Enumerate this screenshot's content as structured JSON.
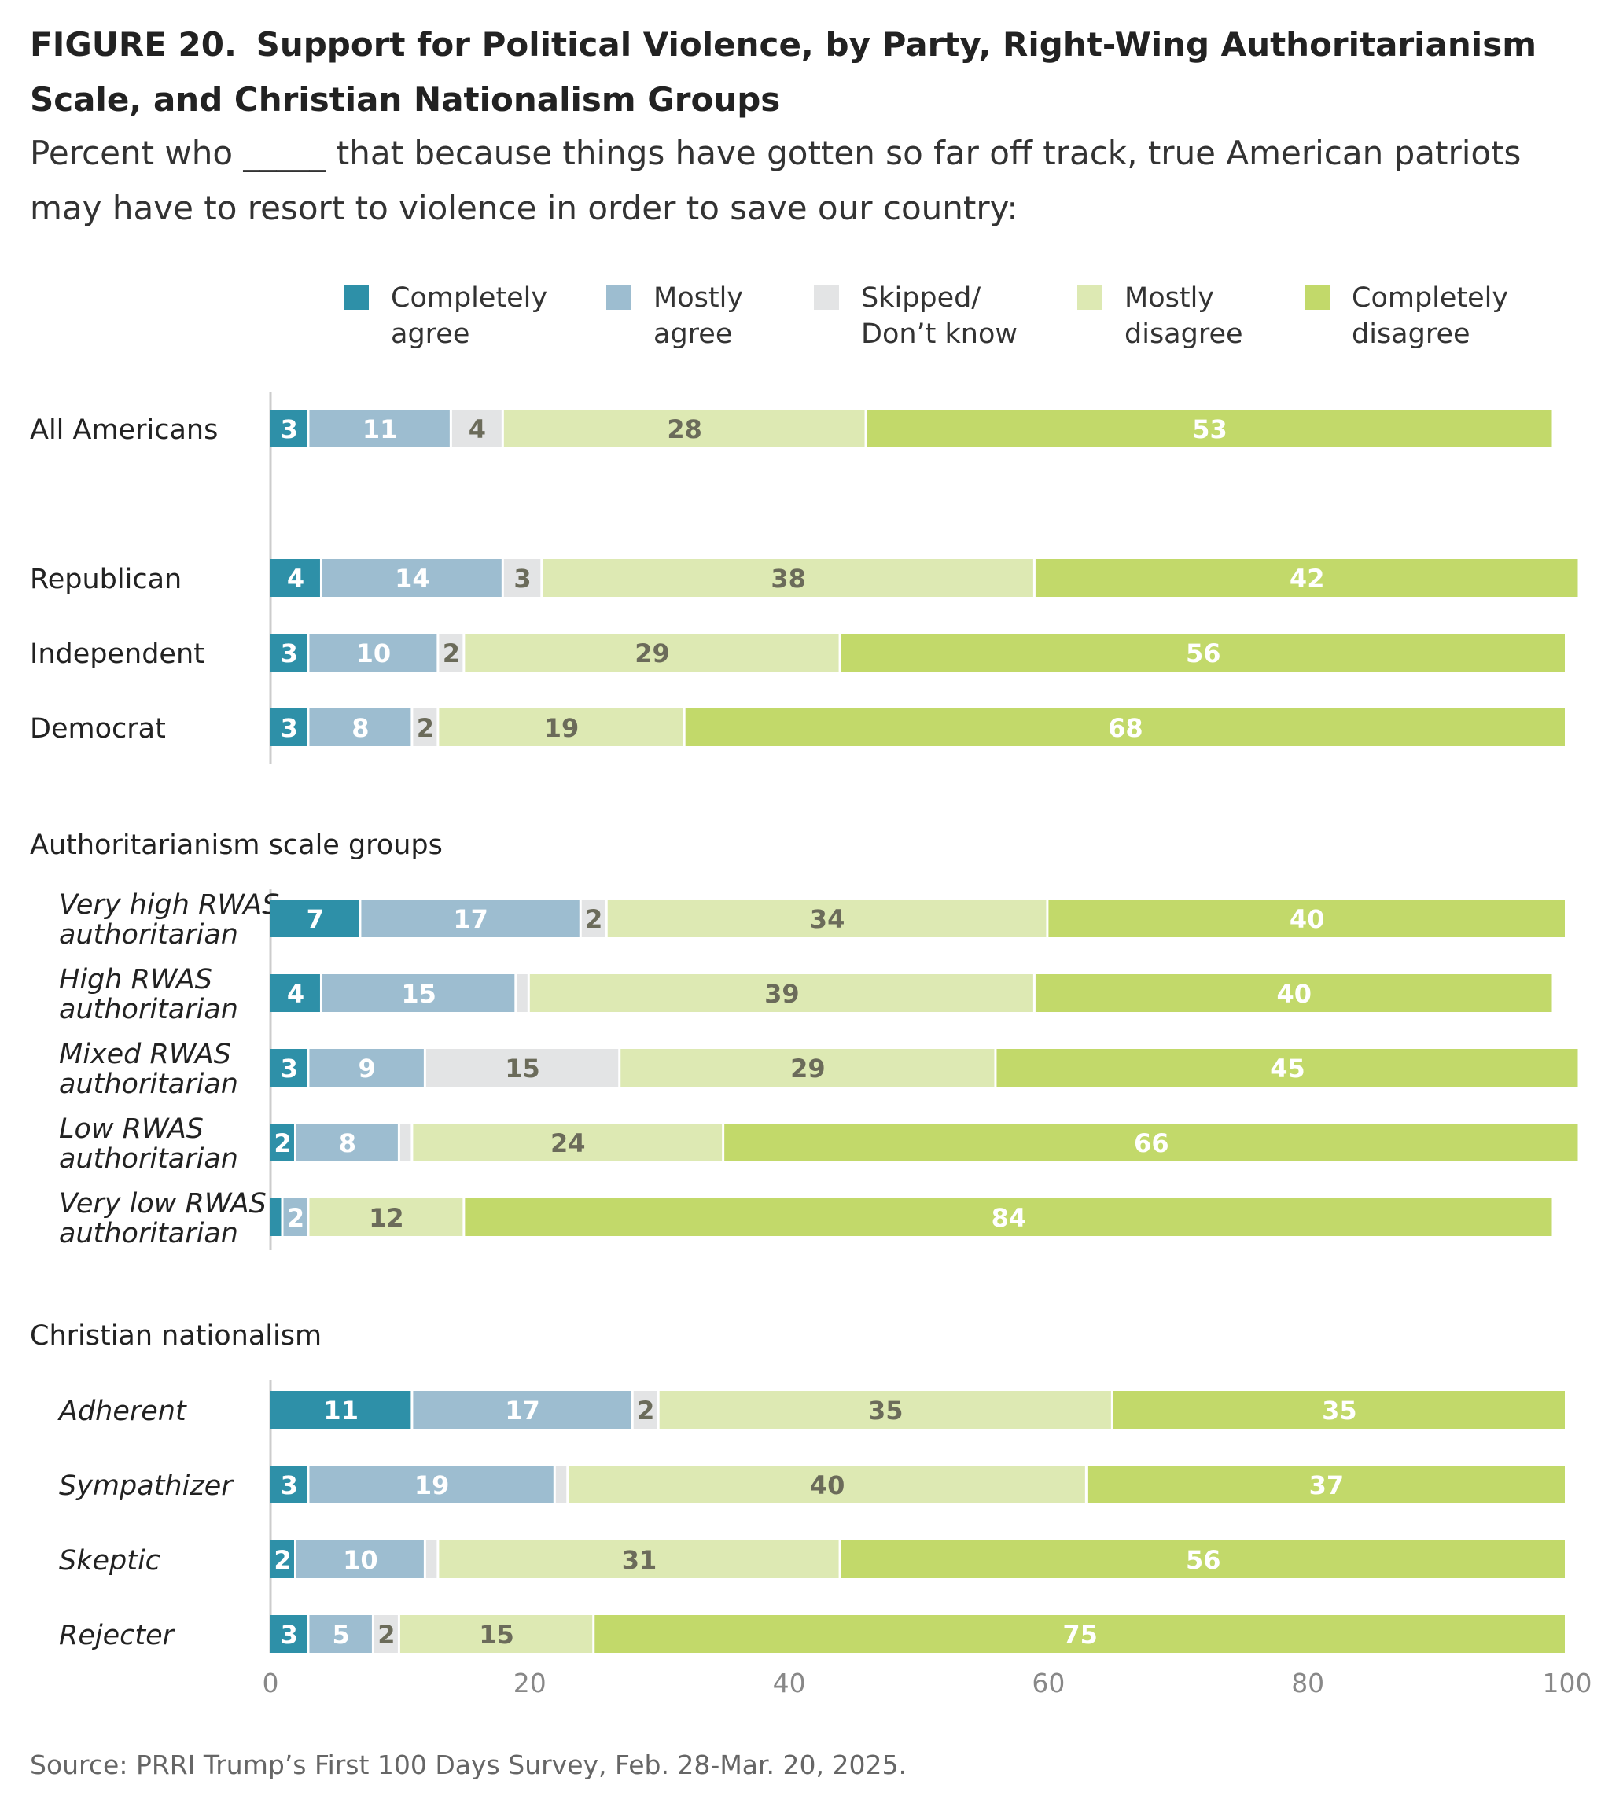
{
  "title": {
    "figure_label": "FIGURE 20.",
    "text": "Support for Political Violence, by Party, Right-Wing Authoritarianism Scale, and Christian Nationalism Groups"
  },
  "subtitle": "Percent who _____ that because things have gotten so far off track, true American patriots may have to resort to violence in order to save our country:",
  "source": "Source: PRRI Trump’s First 100 Days Survey, Feb. 28-Mar. 20, 2025.",
  "colors": {
    "completely_agree": "#2e90a8",
    "mostly_agree": "#9dbdd0",
    "skipped": "#e3e4e5",
    "mostly_disagree": "#dde9b3",
    "completely_disagree": "#c2d96a",
    "axis": "#cccccc",
    "dark_label": "#6b6b5a",
    "light_label": "#ffffff"
  },
  "chart_data": {
    "type": "bar",
    "orientation": "horizontal",
    "stacked": true,
    "xlim": [
      0,
      100
    ],
    "xticks": [
      "0",
      "20",
      "40",
      "60",
      "80",
      "100"
    ],
    "legend_position": "top",
    "series": [
      {
        "key": "completely_agree",
        "name": "Completely agree",
        "name_lines": [
          "Completely",
          "agree"
        ]
      },
      {
        "key": "mostly_agree",
        "name": "Mostly agree",
        "name_lines": [
          "Mostly",
          "agree"
        ]
      },
      {
        "key": "skipped",
        "name": "Skipped/ Don’t know",
        "name_lines": [
          "Skipped/",
          "Don’t know"
        ]
      },
      {
        "key": "mostly_disagree",
        "name": "Mostly disagree",
        "name_lines": [
          "Mostly",
          "disagree"
        ]
      },
      {
        "key": "completely_disagree",
        "name": "Completely disagree",
        "name_lines": [
          "Completely",
          "disagree"
        ]
      }
    ],
    "groups": [
      {
        "heading": "",
        "rows": [
          {
            "label_lines": [
              "All Americans"
            ],
            "italic": false,
            "values": [
              3,
              11,
              4,
              28,
              53
            ],
            "labels": [
              "3",
              "11",
              "4",
              "28",
              "53"
            ]
          }
        ]
      },
      {
        "heading": "",
        "rows": [
          {
            "label_lines": [
              "Republican"
            ],
            "italic": false,
            "values": [
              4,
              14,
              3,
              38,
              42
            ],
            "labels": [
              "4",
              "14",
              "3",
              "38",
              "42"
            ]
          },
          {
            "label_lines": [
              "Independent"
            ],
            "italic": false,
            "values": [
              3,
              10,
              2,
              29,
              56
            ],
            "labels": [
              "3",
              "10",
              "2",
              "29",
              "56"
            ]
          },
          {
            "label_lines": [
              "Democrat"
            ],
            "italic": false,
            "values": [
              3,
              8,
              2,
              19,
              68
            ],
            "labels": [
              "3",
              "8",
              "2",
              "19",
              "68"
            ]
          }
        ]
      },
      {
        "heading": "Authoritarianism scale groups",
        "rows": [
          {
            "label_lines": [
              "Very high RWAS",
              "authoritarian"
            ],
            "italic": true,
            "values": [
              7,
              17,
              2,
              34,
              40
            ],
            "labels": [
              "7",
              "17",
              "2",
              "34",
              "40"
            ]
          },
          {
            "label_lines": [
              "High RWAS",
              "authoritarian"
            ],
            "italic": true,
            "values": [
              4,
              15,
              1,
              39,
              40
            ],
            "labels": [
              "4",
              "15",
              "",
              "39",
              "40"
            ]
          },
          {
            "label_lines": [
              "Mixed RWAS",
              "authoritarian"
            ],
            "italic": true,
            "values": [
              3,
              9,
              15,
              29,
              45
            ],
            "labels": [
              "3",
              "9",
              "15",
              "29",
              "45"
            ]
          },
          {
            "label_lines": [
              "Low RWAS",
              "authoritarian"
            ],
            "italic": true,
            "values": [
              2,
              8,
              1,
              24,
              66
            ],
            "labels": [
              "2",
              "8",
              "",
              "24",
              "66"
            ]
          },
          {
            "label_lines": [
              "Very low RWAS",
              "authoritarian"
            ],
            "italic": true,
            "values": [
              1,
              2,
              0,
              12,
              84
            ],
            "labels": [
              "",
              "2",
              "",
              "12",
              "84"
            ]
          }
        ]
      },
      {
        "heading": "Christian nationalism",
        "rows": [
          {
            "label_lines": [
              "Adherent"
            ],
            "italic": true,
            "values": [
              11,
              17,
              2,
              35,
              35
            ],
            "labels": [
              "11",
              "17",
              "2",
              "35",
              "35"
            ]
          },
          {
            "label_lines": [
              "Sympathizer"
            ],
            "italic": true,
            "values": [
              3,
              19,
              1,
              40,
              37
            ],
            "labels": [
              "3",
              "19",
              "",
              "40",
              "37"
            ]
          },
          {
            "label_lines": [
              "Skeptic"
            ],
            "italic": true,
            "values": [
              2,
              10,
              1,
              31,
              56
            ],
            "labels": [
              "2",
              "10",
              "",
              "31",
              "56"
            ]
          },
          {
            "label_lines": [
              "Rejecter"
            ],
            "italic": true,
            "values": [
              3,
              5,
              2,
              15,
              75
            ],
            "labels": [
              "3",
              "5",
              "2",
              "15",
              "75"
            ]
          }
        ]
      }
    ]
  }
}
